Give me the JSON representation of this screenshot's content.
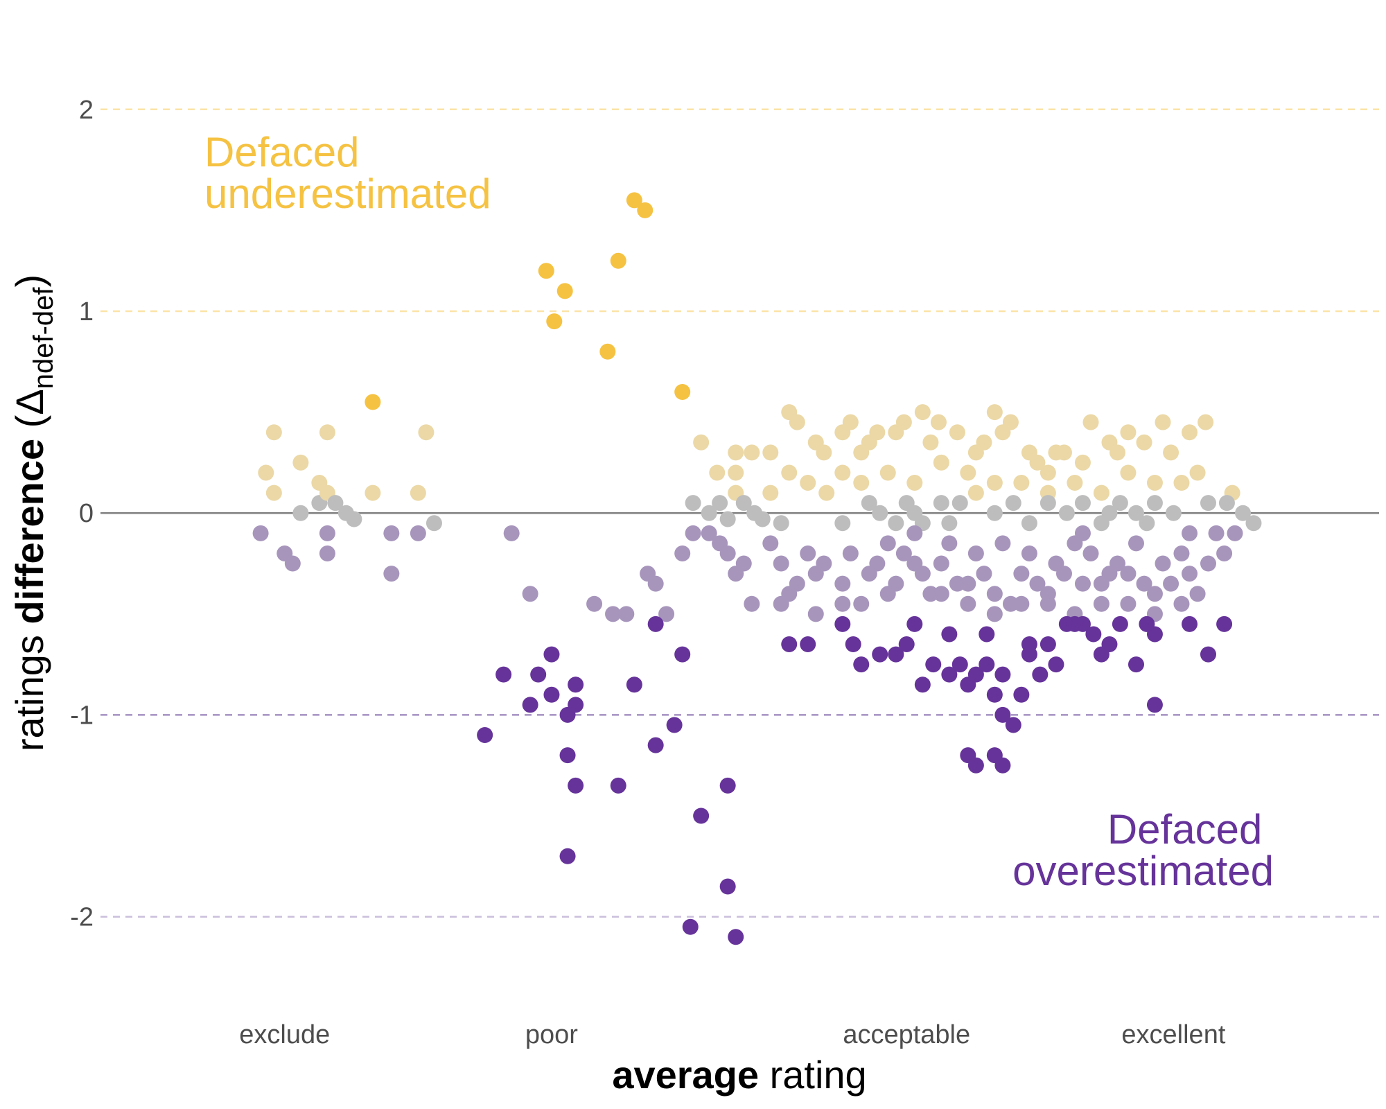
{
  "colors": {
    "underestimated": "#f5c242",
    "underestimated_light": "#ebd8a6",
    "overestimated": "#66339a",
    "overestimated_light": "#a795bc",
    "neutral": "#bdbdbd",
    "zero_line": "#808080",
    "ref_line_upper": "#fbe4a8",
    "ref_line_lower": "#a591c2",
    "ref_line_lower_faint": "#cbbfdc"
  },
  "annotations": {
    "under": [
      "Defaced",
      "underestimated"
    ],
    "over": [
      "Defaced",
      "overestimated"
    ]
  },
  "chart_data": {
    "type": "scatter",
    "xlabel_bold": "average",
    "xlabel_rest": " rating",
    "ylabel_pre": "ratings ",
    "ylabel_bold": "difference",
    "ylabel_delta": " (Δ",
    "ylabel_sub": "ndef-def",
    "ylabel_close": ")",
    "x_ticks": [
      {
        "label": "exclude",
        "value": 1
      },
      {
        "label": "poor",
        "value": 2
      },
      {
        "label": "acceptable",
        "value": 3.33
      },
      {
        "label": "excellent",
        "value": 4.33
      }
    ],
    "xlim": [
      0.31,
      5.1
    ],
    "y_ticks": [
      {
        "label": "2",
        "value": 2
      },
      {
        "label": "1",
        "value": 1
      },
      {
        "label": "0",
        "value": 0
      },
      {
        "label": "-1",
        "value": -1
      },
      {
        "label": "-2",
        "value": -2
      }
    ],
    "ylim": [
      -2.3,
      2.25
    ],
    "ref_lines": [
      2,
      1,
      -1,
      -2
    ],
    "grid": false,
    "points": [
      [
        0.93,
        0.2
      ],
      [
        0.96,
        0.4
      ],
      [
        0.96,
        0.1
      ],
      [
        1.06,
        0.25
      ],
      [
        1.13,
        0.15
      ],
      [
        1.16,
        0.4
      ],
      [
        1.33,
        0.1
      ],
      [
        1.53,
        0.4
      ],
      [
        1.33,
        0.55
      ],
      [
        1.06,
        0
      ],
      [
        1.13,
        0.05
      ],
      [
        1.16,
        0.1
      ],
      [
        1.19,
        0.05
      ],
      [
        1.23,
        0
      ],
      [
        1.26,
        -0.03
      ],
      [
        1.16,
        -0.1
      ],
      [
        1.5,
        0.1
      ],
      [
        1.5,
        -0.1
      ],
      [
        1.56,
        -0.05
      ],
      [
        0.91,
        -0.1
      ],
      [
        1.0,
        -0.2
      ],
      [
        1.03,
        -0.25
      ],
      [
        1.16,
        -0.2
      ],
      [
        1.4,
        -0.1
      ],
      [
        1.4,
        -0.3
      ],
      [
        1.85,
        -0.1
      ],
      [
        1.92,
        -0.4
      ],
      [
        2.16,
        -0.45
      ],
      [
        2.23,
        -0.5
      ],
      [
        2.36,
        -0.3
      ],
      [
        2.39,
        -0.35
      ],
      [
        2.43,
        -0.5
      ],
      [
        2.49,
        -0.2
      ],
      [
        1.98,
        1.2
      ],
      [
        2.01,
        0.95
      ],
      [
        2.05,
        1.1
      ],
      [
        2.21,
        0.8
      ],
      [
        2.25,
        1.25
      ],
      [
        2.31,
        1.55
      ],
      [
        2.35,
        1.5
      ],
      [
        2.49,
        0.6
      ],
      [
        1.75,
        -1.1
      ],
      [
        1.82,
        -0.8
      ],
      [
        1.92,
        -0.95
      ],
      [
        1.95,
        -0.8
      ],
      [
        2.0,
        -0.9
      ],
      [
        2.0,
        -0.7
      ],
      [
        2.06,
        -1.0
      ],
      [
        2.06,
        -1.2
      ],
      [
        2.06,
        -1.7
      ],
      [
        2.09,
        -0.95
      ],
      [
        2.09,
        -0.85
      ],
      [
        2.09,
        -1.35
      ],
      [
        2.25,
        -1.35
      ],
      [
        2.28,
        -0.5
      ],
      [
        2.31,
        -0.85
      ],
      [
        2.39,
        -0.55
      ],
      [
        2.39,
        -1.15
      ],
      [
        2.46,
        -1.05
      ],
      [
        2.49,
        -0.7
      ],
      [
        2.52,
        -2.05
      ],
      [
        2.56,
        -1.5
      ],
      [
        2.66,
        -1.35
      ],
      [
        2.66,
        -1.85
      ],
      [
        2.69,
        -2.1
      ],
      [
        2.56,
        0.35
      ],
      [
        2.62,
        0.2
      ],
      [
        2.69,
        0.3
      ],
      [
        2.69,
        0.2
      ],
      [
        2.75,
        0.3
      ],
      [
        2.82,
        0.3
      ],
      [
        2.82,
        0.1
      ],
      [
        2.89,
        0.5
      ],
      [
        2.92,
        0.45
      ],
      [
        2.96,
        0.15
      ],
      [
        3.02,
        0.3
      ],
      [
        3.09,
        0.4
      ],
      [
        3.12,
        0.45
      ],
      [
        3.16,
        0.3
      ],
      [
        3.22,
        0.4
      ],
      [
        3.29,
        0.4
      ],
      [
        3.32,
        0.45
      ],
      [
        3.39,
        0.5
      ],
      [
        3.45,
        0.45
      ],
      [
        3.52,
        0.4
      ],
      [
        3.59,
        0.3
      ],
      [
        3.62,
        0.35
      ],
      [
        3.66,
        0.5
      ],
      [
        3.72,
        0.45
      ],
      [
        3.79,
        0.3
      ],
      [
        3.82,
        0.25
      ],
      [
        3.86,
        0.2
      ],
      [
        3.92,
        0.3
      ],
      [
        3.99,
        0.25
      ],
      [
        4.02,
        0.45
      ],
      [
        4.09,
        0.35
      ],
      [
        4.16,
        0.4
      ],
      [
        4.22,
        0.35
      ],
      [
        4.32,
        0.3
      ],
      [
        4.39,
        0.4
      ],
      [
        4.45,
        0.45
      ],
      [
        4.55,
        0.1
      ],
      [
        2.89,
        0.2
      ],
      [
        3.09,
        0.2
      ],
      [
        3.16,
        0.15
      ],
      [
        3.26,
        0.2
      ],
      [
        3.36,
        0.15
      ],
      [
        3.46,
        0.25
      ],
      [
        3.56,
        0.2
      ],
      [
        3.66,
        0.15
      ],
      [
        3.76,
        0.15
      ],
      [
        3.86,
        0.1
      ],
      [
        3.96,
        0.15
      ],
      [
        4.06,
        0.1
      ],
      [
        4.16,
        0.2
      ],
      [
        4.26,
        0.15
      ],
      [
        4.36,
        0.15
      ],
      [
        4.42,
        0.2
      ],
      [
        2.99,
        0.35
      ],
      [
        3.19,
        0.35
      ],
      [
        3.42,
        0.35
      ],
      [
        3.69,
        0.4
      ],
      [
        3.89,
        0.3
      ],
      [
        4.12,
        0.3
      ],
      [
        4.29,
        0.45
      ],
      [
        2.53,
        0.05
      ],
      [
        2.59,
        0
      ],
      [
        2.63,
        0.05
      ],
      [
        2.66,
        -0.03
      ],
      [
        2.69,
        0.1
      ],
      [
        2.72,
        0.05
      ],
      [
        2.76,
        0
      ],
      [
        2.79,
        -0.03
      ],
      [
        2.86,
        -0.05
      ],
      [
        3.03,
        0.1
      ],
      [
        3.09,
        -0.05
      ],
      [
        3.19,
        0.05
      ],
      [
        3.23,
        0
      ],
      [
        3.29,
        -0.05
      ],
      [
        3.33,
        0.05
      ],
      [
        3.36,
        0
      ],
      [
        3.39,
        -0.05
      ],
      [
        3.46,
        0.05
      ],
      [
        3.49,
        -0.05
      ],
      [
        3.59,
        0.1
      ],
      [
        3.66,
        0
      ],
      [
        3.73,
        0.05
      ],
      [
        3.79,
        -0.05
      ],
      [
        3.86,
        0.05
      ],
      [
        3.93,
        0
      ],
      [
        3.99,
        0.05
      ],
      [
        4.06,
        -0.05
      ],
      [
        4.13,
        0.05
      ],
      [
        4.19,
        0
      ],
      [
        4.26,
        0.05
      ],
      [
        4.33,
        0
      ],
      [
        4.39,
        -0.1
      ],
      [
        4.46,
        0.05
      ],
      [
        4.53,
        0.05
      ],
      [
        4.59,
        0
      ],
      [
        4.63,
        -0.05
      ],
      [
        3.53,
        0.05
      ],
      [
        3.99,
        -0.1
      ],
      [
        4.23,
        -0.05
      ],
      [
        4.09,
        0
      ],
      [
        2.53,
        -0.1
      ],
      [
        2.59,
        -0.1
      ],
      [
        2.63,
        -0.15
      ],
      [
        2.66,
        -0.2
      ],
      [
        2.69,
        -0.3
      ],
      [
        2.72,
        -0.25
      ],
      [
        2.75,
        -0.45
      ],
      [
        2.82,
        -0.15
      ],
      [
        2.86,
        -0.25
      ],
      [
        2.89,
        -0.4
      ],
      [
        2.92,
        -0.35
      ],
      [
        2.96,
        -0.2
      ],
      [
        2.99,
        -0.3
      ],
      [
        3.02,
        -0.25
      ],
      [
        3.09,
        -0.35
      ],
      [
        3.12,
        -0.2
      ],
      [
        3.16,
        -0.45
      ],
      [
        3.19,
        -0.3
      ],
      [
        3.22,
        -0.25
      ],
      [
        3.26,
        -0.15
      ],
      [
        3.29,
        -0.35
      ],
      [
        3.32,
        -0.2
      ],
      [
        3.36,
        -0.1
      ],
      [
        3.39,
        -0.3
      ],
      [
        3.42,
        -0.4
      ],
      [
        3.46,
        -0.25
      ],
      [
        3.49,
        -0.15
      ],
      [
        3.52,
        -0.35
      ],
      [
        3.56,
        -0.45
      ],
      [
        3.59,
        -0.2
      ],
      [
        3.62,
        -0.3
      ],
      [
        3.66,
        -0.4
      ],
      [
        3.69,
        -0.15
      ],
      [
        3.72,
        -0.45
      ],
      [
        3.76,
        -0.3
      ],
      [
        3.79,
        -0.2
      ],
      [
        3.82,
        -0.35
      ],
      [
        3.86,
        -0.4
      ],
      [
        3.89,
        -0.25
      ],
      [
        3.92,
        -0.3
      ],
      [
        3.96,
        -0.15
      ],
      [
        3.99,
        -0.35
      ],
      [
        4.02,
        -0.2
      ],
      [
        4.06,
        -0.45
      ],
      [
        4.09,
        -0.3
      ],
      [
        4.12,
        -0.25
      ],
      [
        4.16,
        -0.3
      ],
      [
        4.19,
        -0.15
      ],
      [
        4.22,
        -0.35
      ],
      [
        4.26,
        -0.5
      ],
      [
        4.29,
        -0.25
      ],
      [
        4.32,
        -0.35
      ],
      [
        4.36,
        -0.2
      ],
      [
        4.39,
        -0.3
      ],
      [
        4.42,
        -0.4
      ],
      [
        4.46,
        -0.25
      ],
      [
        4.49,
        -0.1
      ],
      [
        4.52,
        -0.2
      ],
      [
        4.56,
        -0.1
      ],
      [
        2.86,
        -0.45
      ],
      [
        2.99,
        -0.5
      ],
      [
        3.09,
        -0.45
      ],
      [
        3.26,
        -0.4
      ],
      [
        3.36,
        -0.25
      ],
      [
        3.46,
        -0.4
      ],
      [
        3.56,
        -0.35
      ],
      [
        3.66,
        -0.5
      ],
      [
        3.76,
        -0.45
      ],
      [
        3.86,
        -0.45
      ],
      [
        3.96,
        -0.5
      ],
      [
        4.06,
        -0.35
      ],
      [
        4.16,
        -0.45
      ],
      [
        4.26,
        -0.4
      ],
      [
        4.36,
        -0.45
      ],
      [
        3.09,
        -0.55
      ],
      [
        3.13,
        -0.65
      ],
      [
        3.16,
        -0.75
      ],
      [
        3.23,
        -0.7
      ],
      [
        3.29,
        -0.7
      ],
      [
        3.33,
        -0.65
      ],
      [
        3.39,
        -0.85
      ],
      [
        3.43,
        -0.75
      ],
      [
        3.49,
        -0.8
      ],
      [
        3.53,
        -0.75
      ],
      [
        3.56,
        -0.85
      ],
      [
        3.59,
        -0.8
      ],
      [
        3.63,
        -0.75
      ],
      [
        3.66,
        -0.9
      ],
      [
        3.69,
        -1.0
      ],
      [
        3.73,
        -1.05
      ],
      [
        3.76,
        -0.9
      ],
      [
        3.79,
        -0.7
      ],
      [
        3.83,
        -0.8
      ],
      [
        3.86,
        -0.65
      ],
      [
        3.89,
        -0.75
      ],
      [
        3.93,
        -0.55
      ],
      [
        3.99,
        -0.55
      ],
      [
        4.03,
        -0.6
      ],
      [
        4.09,
        -0.65
      ],
      [
        4.13,
        -0.55
      ],
      [
        4.19,
        -0.75
      ],
      [
        4.26,
        -0.6
      ],
      [
        4.39,
        -0.55
      ],
      [
        4.52,
        -0.55
      ],
      [
        4.46,
        -0.7
      ],
      [
        4.26,
        -0.95
      ],
      [
        2.89,
        -0.65
      ],
      [
        2.96,
        -0.65
      ],
      [
        3.56,
        -1.2
      ],
      [
        3.59,
        -1.25
      ],
      [
        3.66,
        -1.2
      ],
      [
        3.69,
        -1.25
      ],
      [
        3.69,
        -0.8
      ],
      [
        3.36,
        -0.55
      ],
      [
        3.49,
        -0.6
      ],
      [
        3.63,
        -0.6
      ],
      [
        3.79,
        -0.65
      ],
      [
        3.96,
        -0.55
      ],
      [
        4.06,
        -0.7
      ],
      [
        4.23,
        -0.55
      ]
    ]
  }
}
